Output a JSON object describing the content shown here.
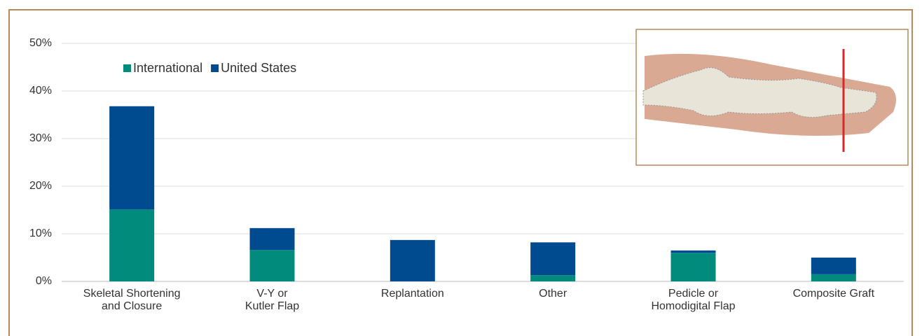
{
  "chart_data": {
    "type": "stacked_bar",
    "categories": [
      "Skeletal Shortening\nand Closure",
      "V-Y or\nKutler Flap",
      "Replantation",
      "Other",
      "Pedicle or\nHomodigital Flap",
      "Composite Graft"
    ],
    "series": [
      {
        "name": "International",
        "color": "#008b7d",
        "values": [
          15.1,
          6.6,
          0,
          1.3,
          6.0,
          1.5
        ]
      },
      {
        "name": "United States",
        "color": "#004a8f",
        "values": [
          21.7,
          4.6,
          8.7,
          6.9,
          0.5,
          3.5
        ]
      }
    ],
    "ylim": [
      0,
      50
    ],
    "yticks": [
      {
        "value": 0,
        "label": "0%"
      },
      {
        "value": 10,
        "label": "10%"
      },
      {
        "value": 20,
        "label": "20%"
      },
      {
        "value": 30,
        "label": "30%"
      },
      {
        "value": 40,
        "label": "40%"
      },
      {
        "value": 50,
        "label": "50%"
      }
    ],
    "grid": true,
    "legend": "upper left"
  }
}
